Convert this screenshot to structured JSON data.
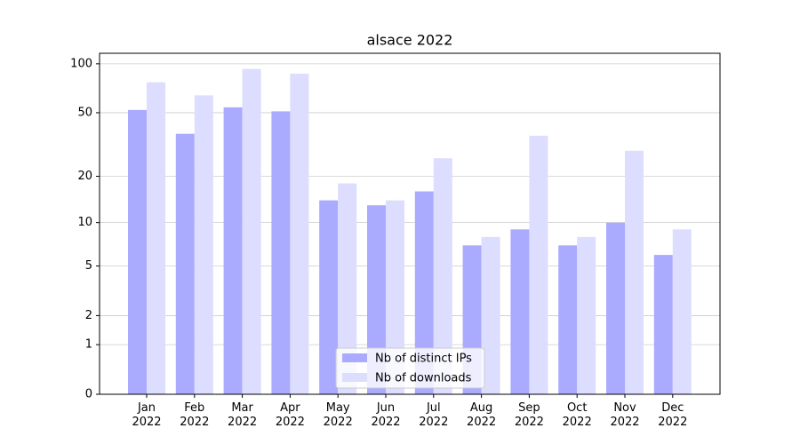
{
  "chart_data": {
    "type": "bar",
    "title": "alsace 2022",
    "categories": [
      "Jan\n2022",
      "Feb\n2022",
      "Mar\n2022",
      "Apr\n2022",
      "May\n2022",
      "Jun\n2022",
      "Jul\n2022",
      "Aug\n2022",
      "Sep\n2022",
      "Oct\n2022",
      "Nov\n2022",
      "Dec\n2022"
    ],
    "series": [
      {
        "name": "Nb of distinct IPs",
        "color": "#aaaaff",
        "values": [
          52,
          37,
          54,
          51,
          14,
          13,
          16,
          7,
          9,
          7,
          10,
          6
        ]
      },
      {
        "name": "Nb of downloads",
        "color": "#ddddff",
        "values": [
          77,
          64,
          93,
          87,
          18,
          14,
          26,
          8,
          36,
          8,
          29,
          9
        ]
      }
    ],
    "y_scale": "log1p",
    "ylim": [
      0,
      116
    ],
    "yticks": [
      0,
      1,
      2,
      5,
      10,
      20,
      50,
      100
    ],
    "grid": true,
    "legend": "lower center"
  }
}
